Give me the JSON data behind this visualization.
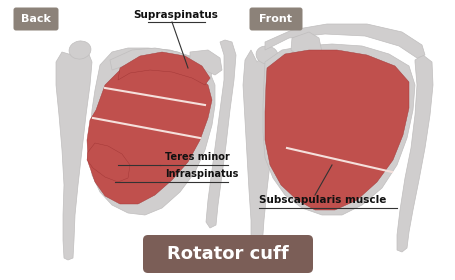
{
  "bg_color": "#ffffff",
  "bone_color": "#d0cece",
  "muscle_color": "#c0504d",
  "label_back": "Back",
  "label_front": "Front",
  "label_supraspinatus": "Supraspinatus",
  "label_teres_minor": "Teres minor",
  "label_infraspinatus": "Infraspinatus",
  "label_subscapularis": "Subscapularis muscle",
  "title": "Rotator cuff",
  "title_bg": "#7b5e57",
  "title_color": "#ffffff",
  "tag_bg": "#8c8279",
  "tag_text_color": "#ffffff",
  "line_color": "#333333",
  "sep_line_color": "#f5e0dc"
}
